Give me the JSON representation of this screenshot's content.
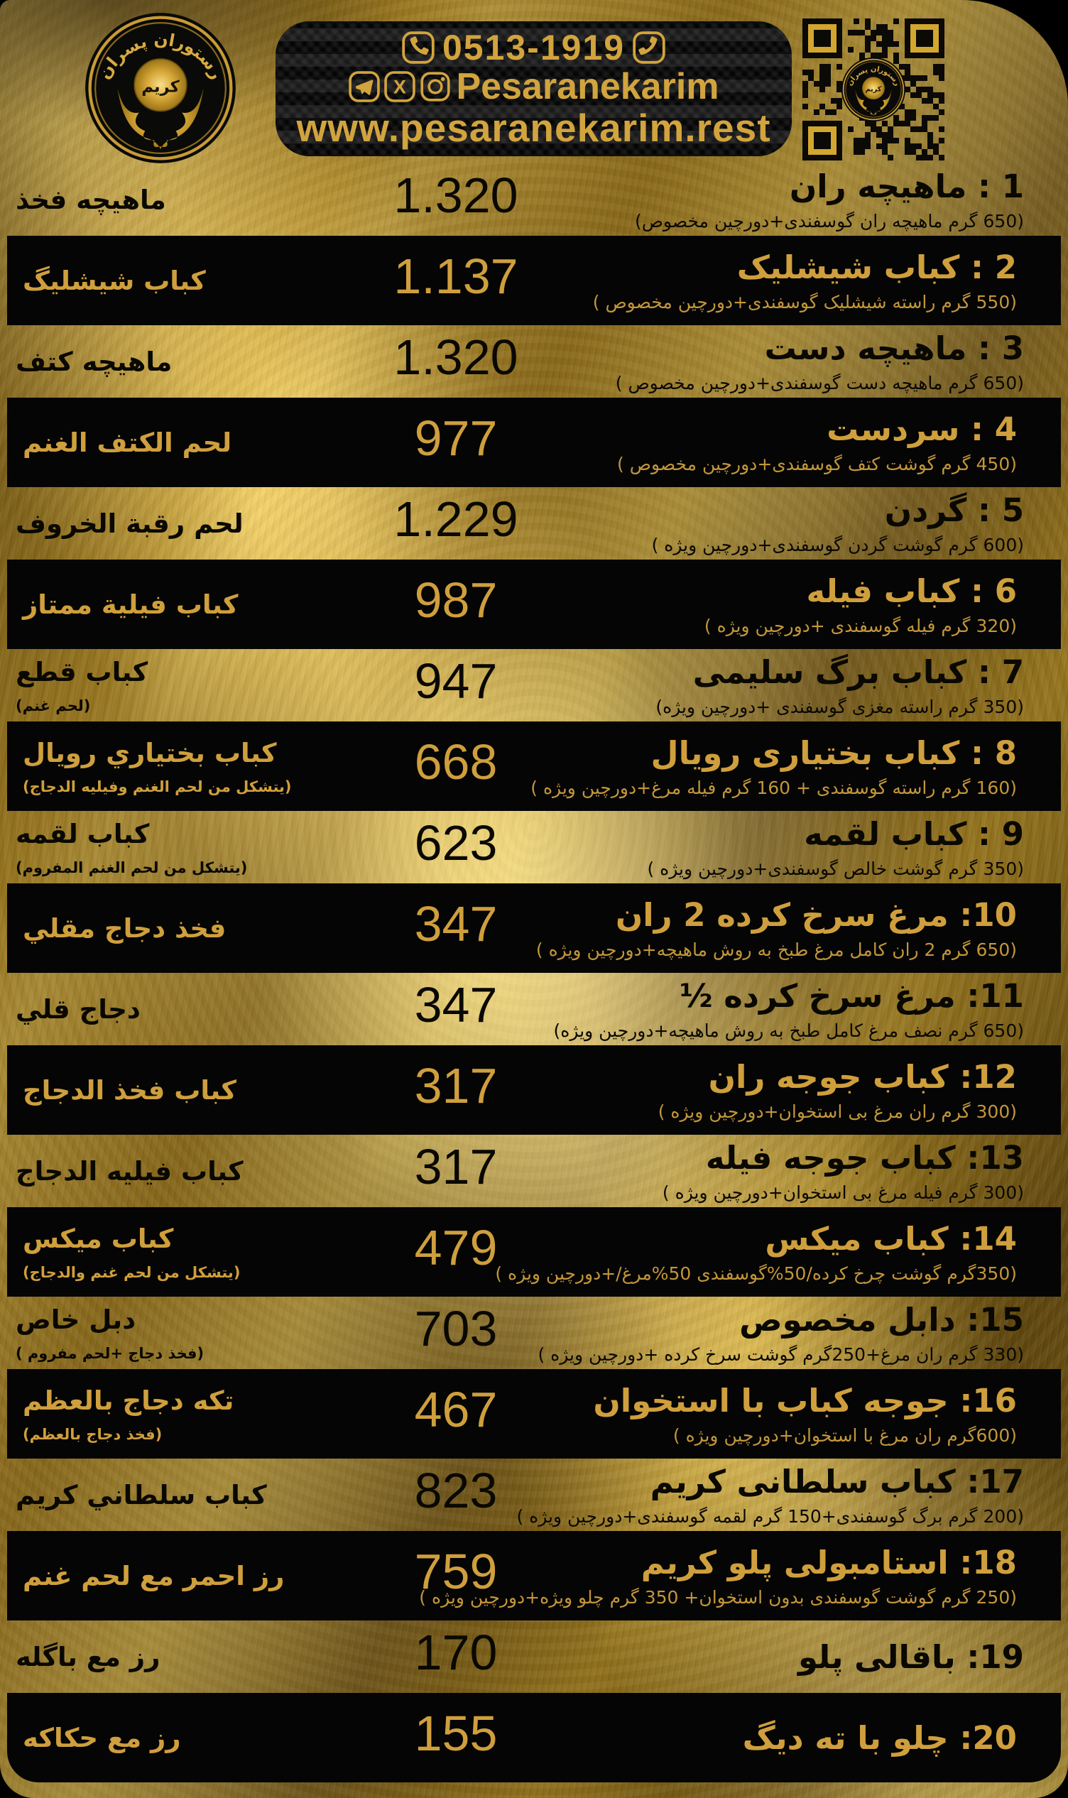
{
  "colors": {
    "gold_text": "#d0a140",
    "gold_dim": "#c3963a",
    "band_black": "#050505",
    "card_gold": "#d3a62f"
  },
  "header": {
    "phone": "0513-1919",
    "social_handle": "Pesaranekarim",
    "website": "www.pesaranekarim.rest",
    "logo": {
      "arc_text": "رستوران پسران",
      "center_text": "كريم"
    },
    "icons": [
      "phone-icon",
      "telegram-icon",
      "x-icon",
      "instagram-icon",
      "qr-code"
    ]
  },
  "menu": {
    "items": [
      {
        "num": "1",
        "title": "1 : ماهیچه ران",
        "desc": "(650 گرم ماهیچه ران گوسفندی+دورچین مخصوص)",
        "price": "1.320",
        "alt": "ماهيچه فخذ",
        "alt_desc": ""
      },
      {
        "num": "2",
        "title": "2 : کباب شیشلیک",
        "desc": "(550 گرم راسته شیشلیک گوسفندی+دورچین مخصوص )",
        "price": "1.137",
        "alt": "كباب شيشليگ",
        "alt_desc": ""
      },
      {
        "num": "3",
        "title": "3 : ماهیچه دست",
        "desc": "(650 گرم ماهیچه دست گوسفندی+دورچین مخصوص )",
        "price": "1.320",
        "alt": "ماهيچه كتف",
        "alt_desc": ""
      },
      {
        "num": "4",
        "title": "4 : سردست",
        "desc": "(450 گرم گوشت کتف گوسفندی+دورچین مخصوص )",
        "price": "977",
        "alt": "لحم الكتف الغنم",
        "alt_desc": ""
      },
      {
        "num": "5",
        "title": "5 : گردن",
        "desc": "(600 گرم گوشت گردن گوسفندی+دورچین ویژه )",
        "price": "1.229",
        "alt": "لحم رقبة الخروف",
        "alt_desc": ""
      },
      {
        "num": "6",
        "title": "6 : کباب فیله",
        "desc": "(320 گرم فیله گوسفندی +دورچین ویژه )",
        "price": "987",
        "alt": "كباب فيلية ممتاز",
        "alt_desc": ""
      },
      {
        "num": "7",
        "title": "7 : کباب برگ سلیمی",
        "desc": "(350 گرم راسته مغزی گوسفندی +دورچین ویژه)",
        "price": "947",
        "alt": "كباب قطع",
        "alt_desc": "(لحم غنم)"
      },
      {
        "num": "8",
        "title": "8 : کباب بختیاری رویال",
        "desc": "(160 گرم راسته گوسفندی + 160 گرم فیله مرغ+دورچین ویژه )",
        "price": "668",
        "alt": "كباب بختياري رويال",
        "alt_desc": "(يتشكل من لحم الغنم وفيليه الدجاج)"
      },
      {
        "num": "9",
        "title": "9 : کباب لقمه",
        "desc": "(350 گرم گوشت خالص گوسفندی+دورچین ویژه )",
        "price": "623",
        "alt": "كباب لقمه",
        "alt_desc": "(يتشكل من لحم الغنم المفروم)"
      },
      {
        "num": "10",
        "title": "10: مرغ سرخ کرده 2 ران",
        "desc": "(650 گرم 2 ران کامل مرغ طبخ به روش ماهیچه+دورچین ویژه )",
        "price": "347",
        "alt": "فخذ دجاج مقلي",
        "alt_desc": ""
      },
      {
        "num": "11",
        "title": "11: مرغ سرخ کرده ½",
        "desc": "(650 گرم نصف مرغ کامل طبخ به روش ماهیچه+دورچین ویژه)",
        "price": "347",
        "alt": "دجاج قلي",
        "alt_desc": ""
      },
      {
        "num": "12",
        "title": "12: کباب جوجه ران",
        "desc": "(300 گرم ران مرغ بی استخوان+دورچین ویژه )",
        "price": "317",
        "alt": "كباب فخذ الدجاج",
        "alt_desc": ""
      },
      {
        "num": "13",
        "title": "13: کباب جوجه فیله",
        "desc": "(300 گرم فیله مرغ بی استخوان+دورچین ویژه )",
        "price": "317",
        "alt": "كباب فيليه الدجاج",
        "alt_desc": ""
      },
      {
        "num": "14",
        "title": "14: کباب میکس",
        "desc": "(350گرم گوشت چرخ کرده/50%گوسفندی 50%مرغ/+دورچین ویژه )",
        "price": "479",
        "alt": "كباب ميكس",
        "alt_desc": "(يتشكل من لحم غنم والدجاج)"
      },
      {
        "num": "15",
        "title": "15: دابل مخصوص",
        "desc": "(330 گرم ران مرغ+250گرم گوشت سرخ کرده +دورچین ویژه )",
        "price": "703",
        "alt": "دبل خاص",
        "alt_desc": "(فخذ دجاج +لحم مفروم )"
      },
      {
        "num": "16",
        "title": "16: جوجه کباب با استخوان",
        "desc": "(600گرم ران مرغ با استخوان+دورچین ویژه )",
        "price": "467",
        "alt": "تكه دجاج بالعظم",
        "alt_desc": "(فخذ دجاج بالعظم)"
      },
      {
        "num": "17",
        "title": "17: کباب سلطانی کریم",
        "desc": "(200 گرم برگ گوسفندی+150 گرم لقمه گوسفندی+دورچین ویژه )",
        "price": "823",
        "alt": "كباب سلطاني كريم",
        "alt_desc": ""
      },
      {
        "num": "18",
        "title": "18: استامبولی پلو کریم",
        "desc": "(250 گرم گوشت گوسفندی بدون استخوان+ 350 گرم چلو ویژه+دورچین ویژه )",
        "price": "759",
        "alt": "رز احمر مع لحم غنم",
        "alt_desc": ""
      },
      {
        "num": "19",
        "title": "19: باقالی پلو",
        "desc": "",
        "price": "170",
        "alt": "رز مع باگله",
        "alt_desc": ""
      },
      {
        "num": "20",
        "title": "20: چلو با ته دیگ",
        "desc": "",
        "price": "155",
        "alt": "رز مع حكاكه",
        "alt_desc": ""
      }
    ]
  }
}
